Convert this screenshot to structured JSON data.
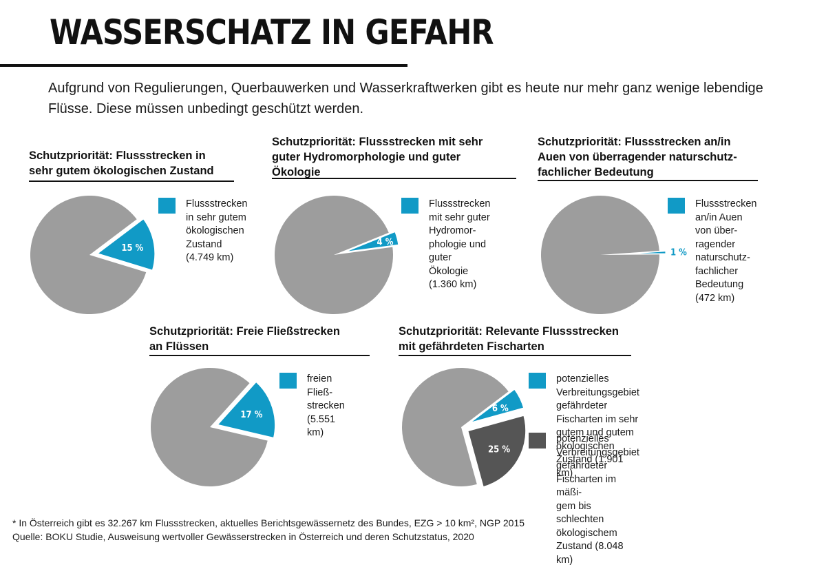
{
  "page": {
    "title": "WASSERSCHATZ IN GEFAHR",
    "intro": "Aufgrund von Regulierungen, Querbauwerken und Wasserkraftwerken gibt es heute nur mehr ganz wenige lebendige Flüsse. Diese müssen unbedingt geschützt werden.",
    "footnote": "* In Österreich gibt es 32.267 km Flussstrecken, aktuelles Berichtsgewässernetz des Bundes, EZG > 10 km², NGP 2015",
    "source": "Quelle: BOKU Studie, Ausweisung wertvoller Gewässerstrecken in Österreich und deren Schutzstatus, 2020"
  },
  "colors": {
    "remainder": "#9d9d9d",
    "blue": "#119ac6",
    "dark": "#555555"
  },
  "chart_data": [
    {
      "type": "pie",
      "title": "Schutzpriorität: Flussstrecken in sehr gutem ökologischen Zustand",
      "slices": [
        {
          "label": "15 %",
          "value": 15,
          "color": "#119ac6",
          "legend": "Flussstrecken\nin sehr gutem\nökologischen\nZustand\n(4.749 km)"
        },
        {
          "label": "",
          "value": 85,
          "color": "#9d9d9d",
          "legend": ""
        }
      ]
    },
    {
      "type": "pie",
      "title": "Schutzpriorität: Flussstrecken mit sehr guter Hydromorphologie und guter Ökologie",
      "slices": [
        {
          "label": "4 %",
          "value": 4,
          "color": "#119ac6",
          "legend": "Flussstrecken\nmit sehr guter\nHydromor-\nphologie und\nguter Ökologie\n(1.360 km)"
        },
        {
          "label": "",
          "value": 96,
          "color": "#9d9d9d",
          "legend": ""
        }
      ]
    },
    {
      "type": "pie",
      "title": "Schutzpriorität: Flussstrecken an/in Auen von überragender naturschutz-fachlicher Bedeutung",
      "slices": [
        {
          "label": "1 %",
          "value": 1,
          "color": "#119ac6",
          "legend": "Flussstrecken\nan/in Auen\nvon über-\nragender\nnaturschutz-\nfachlicher\nBedeutung\n(472 km)"
        },
        {
          "label": "",
          "value": 99,
          "color": "#9d9d9d",
          "legend": ""
        }
      ]
    },
    {
      "type": "pie",
      "title": "Schutzpriorität: Freie Fließstrecken an Flüssen",
      "slices": [
        {
          "label": "17 %",
          "value": 17,
          "color": "#119ac6",
          "legend": "freien Fließ-\nstrecken\n(5.551 km)"
        },
        {
          "label": "",
          "value": 83,
          "color": "#9d9d9d",
          "legend": ""
        }
      ]
    },
    {
      "type": "pie",
      "title": "Schutzpriorität: Relevante Flussstrecken mit gefährdeten Fischarten",
      "slices": [
        {
          "label": "6 %",
          "value": 6,
          "color": "#119ac6",
          "legend": "potenzielles Verbreitungsgebiet\ngefährdeter Fischarten im sehr\ngutem und gutem ökologischen\nZustand (1.901 km)"
        },
        {
          "label": "25 %",
          "value": 25,
          "color": "#555555",
          "legend": "potenzielles Verbreitungsgebiet\ngefährdeter Fischarten im mäßi-\ngem bis schlechten ökologischem\nZustand (8.048 km)"
        },
        {
          "label": "",
          "value": 69,
          "color": "#9d9d9d",
          "legend": ""
        }
      ]
    }
  ]
}
